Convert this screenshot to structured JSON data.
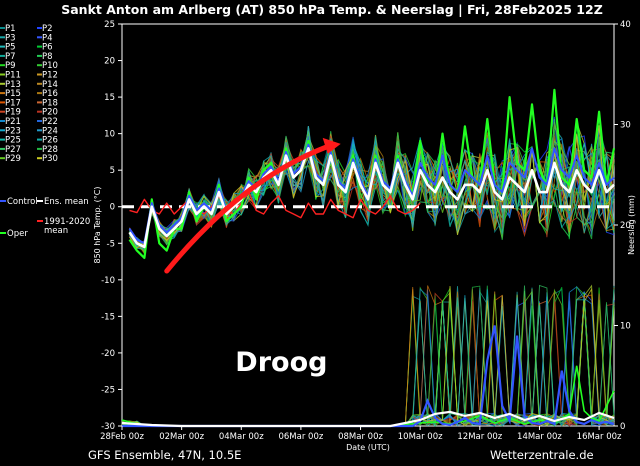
{
  "chart_data": {
    "type": "line",
    "title": "Sankt Anton am Arlberg  (AT)  850 hPa Temp. & Neerslag | Fri, 28Feb2025 12Z",
    "xlabel": "Date (UTC)",
    "ylabel": "850 hPa Temp. (°C)",
    "y2label": "Neerslag (mm)",
    "ylim": [
      -30,
      25
    ],
    "y2lim": [
      0,
      40
    ],
    "yticks": [
      25,
      20,
      15,
      10,
      5,
      0,
      -5,
      -10,
      -15,
      -20,
      -25,
      -30
    ],
    "y2ticks": [
      40,
      30,
      20,
      10,
      0
    ],
    "xlim": [
      0,
      16.5
    ],
    "x_tick_labels": [
      "28Feb 00z",
      "02Mar 00z",
      "04Mar 00z",
      "06Mar 00z",
      "08Mar 00z",
      "10Mar 00z",
      "12Mar 00z",
      "14Mar 00z",
      "16Mar 00z"
    ],
    "x_tick_days": [
      0,
      2,
      4,
      6,
      8,
      10,
      12,
      14,
      16
    ],
    "grid": false,
    "legend_position": "left",
    "legend": [
      {
        "name": "P1",
        "color": "#0a8c8c"
      },
      {
        "name": "P2",
        "color": "#2244ff"
      },
      {
        "name": "P3",
        "color": "#1aa8a8"
      },
      {
        "name": "P4",
        "color": "#3355ff"
      },
      {
        "name": "P5",
        "color": "#22bbbb"
      },
      {
        "name": "P6",
        "color": "#00cc33"
      },
      {
        "name": "P7",
        "color": "#11aa99"
      },
      {
        "name": "P8",
        "color": "#22cc55"
      },
      {
        "name": "P9",
        "color": "#22dd22"
      },
      {
        "name": "P10",
        "color": "#33cc33"
      },
      {
        "name": "P11",
        "color": "#88cc22"
      },
      {
        "name": "P12",
        "color": "#cc9922"
      },
      {
        "name": "P13",
        "color": "#aacc33"
      },
      {
        "name": "P14",
        "color": "#bb8822"
      },
      {
        "name": "P15",
        "color": "#cc7711"
      },
      {
        "name": "P16",
        "color": "#aa7711"
      },
      {
        "name": "P17",
        "color": "#dd5500"
      },
      {
        "name": "P18",
        "color": "#cc6633"
      },
      {
        "name": "P19",
        "color": "#cc4422"
      },
      {
        "name": "P20",
        "color": "#bb3322"
      },
      {
        "name": "P21",
        "color": "#1188cc"
      },
      {
        "name": "P22",
        "color": "#2266dd"
      },
      {
        "name": "P23",
        "color": "#11aacc"
      },
      {
        "name": "P24",
        "color": "#2299cc"
      },
      {
        "name": "P25",
        "color": "#11bbaa"
      },
      {
        "name": "P26",
        "color": "#11aaaa"
      },
      {
        "name": "P27",
        "color": "#33cc66"
      },
      {
        "name": "P28",
        "color": "#22bb44"
      },
      {
        "name": "P29",
        "color": "#66cc22"
      },
      {
        "name": "P30",
        "color": "#cccc22"
      },
      {
        "name": "Control",
        "color": "#3355ff"
      },
      {
        "name": "Ens. mean",
        "color": "#ffffff"
      },
      {
        "name": "1991-2020 mean",
        "color": "#ff2222"
      },
      {
        "name": "Oper",
        "color": "#22ff22"
      }
    ],
    "series": [
      {
        "name": "Ens. mean",
        "color": "#ffffff",
        "x": [
          0.25,
          0.5,
          0.75,
          1.0,
          1.25,
          1.5,
          1.75,
          2.0,
          2.25,
          2.5,
          2.75,
          3.0,
          3.25,
          3.5,
          3.75,
          4.0,
          4.25,
          4.5,
          4.75,
          5.0,
          5.25,
          5.5,
          5.75,
          6.0,
          6.25,
          6.5,
          6.75,
          7.0,
          7.25,
          7.5,
          7.75,
          8.0,
          8.25,
          8.5,
          8.75,
          9.0,
          9.25,
          9.5,
          9.75,
          10.0,
          10.25,
          10.5,
          10.75,
          11.0,
          11.25,
          11.5,
          11.75,
          12.0,
          12.25,
          12.5,
          12.75,
          13.0,
          13.25,
          13.5,
          13.75,
          14.0,
          14.25,
          14.5,
          14.75,
          15.0,
          15.25,
          15.5,
          15.75,
          16.0,
          16.25,
          16.5
        ],
        "y": [
          -3.5,
          -5,
          -5.5,
          0,
          -3,
          -4,
          -3,
          -2,
          1,
          -1,
          0,
          -1,
          2,
          -1,
          0,
          1,
          3,
          2,
          4,
          5,
          3,
          7,
          4,
          5,
          8,
          4,
          3,
          7,
          3,
          2,
          6,
          3,
          1,
          6,
          3,
          2,
          6,
          3,
          1,
          5,
          3,
          2,
          4,
          2,
          1,
          3,
          3,
          2,
          5,
          2,
          1,
          4,
          3,
          2,
          5,
          2,
          2,
          6,
          3,
          2,
          5,
          3,
          2,
          5,
          2,
          3
        ]
      },
      {
        "name": "Oper",
        "color": "#22ff22",
        "x": [
          0.25,
          0.5,
          0.75,
          1.0,
          1.25,
          1.5,
          1.75,
          2.0,
          2.25,
          2.5,
          2.75,
          3.0,
          3.25,
          3.5,
          3.75,
          4.0,
          4.25,
          4.5,
          4.75,
          5.0,
          5.25,
          5.5,
          5.75,
          6.0,
          6.25,
          6.5,
          6.75,
          7.0,
          7.25,
          7.5,
          7.75,
          8.0,
          8.25,
          8.5,
          8.75,
          9.0,
          9.25,
          9.5,
          9.75,
          10.0,
          10.25,
          10.5,
          10.75,
          11.0,
          11.25,
          11.5,
          11.75,
          12.0,
          12.25,
          12.5,
          12.75,
          13.0,
          13.25,
          13.5,
          13.75,
          14.0,
          14.25,
          14.5,
          14.75,
          15.0,
          15.25,
          15.5,
          15.75,
          16.0,
          16.25,
          16.5
        ],
        "y": [
          -4.5,
          -6,
          -7,
          1,
          -5,
          -6,
          -3,
          -3,
          2,
          -2,
          0,
          -1,
          3,
          -2,
          -1,
          0,
          4,
          1,
          5,
          6,
          3,
          8,
          4,
          5,
          9,
          4,
          3,
          8,
          3,
          2,
          7,
          3,
          1,
          7,
          3,
          2,
          7,
          3,
          2,
          9,
          3,
          2,
          10,
          3,
          2,
          11,
          4,
          3,
          12,
          3,
          2,
          15,
          6,
          5,
          14,
          5,
          3,
          16,
          4,
          3,
          12,
          5,
          4,
          13,
          3,
          8
        ]
      },
      {
        "name": "Control",
        "color": "#3355ff",
        "x": [
          0.25,
          0.5,
          0.75,
          1.0,
          1.25,
          1.5,
          1.75,
          2.0,
          2.25,
          2.5,
          2.75,
          3.0,
          3.25,
          3.5,
          3.75,
          4.0,
          4.25,
          4.5,
          4.75,
          5.0,
          5.25,
          5.5,
          5.75,
          6.0,
          6.25,
          6.5,
          6.75,
          7.0,
          7.25,
          7.5,
          7.75,
          8.0,
          8.25,
          8.5,
          8.75,
          9.0,
          9.25,
          9.5,
          9.75,
          10.0,
          10.25,
          10.5,
          10.75,
          11.0,
          11.25,
          11.5,
          11.75,
          12.0,
          12.25,
          12.5,
          12.75,
          13.0,
          13.25,
          13.5,
          13.75,
          14.0,
          14.25,
          14.5,
          14.75,
          15.0,
          15.25,
          15.5,
          15.75,
          16.0,
          16.25,
          16.5
        ],
        "y": [
          -3,
          -4.5,
          -5,
          0.5,
          -2.5,
          -3.5,
          -2.5,
          -1.5,
          1.5,
          -0.5,
          0.5,
          -0.5,
          2.5,
          -0.5,
          0.5,
          1.5,
          3.5,
          2.5,
          4.5,
          5.5,
          3.5,
          7.5,
          4.5,
          5.5,
          8.5,
          4.5,
          3.5,
          7.5,
          3.5,
          2.5,
          6.5,
          3.5,
          1.5,
          6.5,
          3.5,
          2.5,
          6.5,
          3.5,
          1.5,
          6,
          4,
          3,
          7,
          3,
          2,
          5,
          4,
          3,
          7,
          3,
          2,
          6,
          5,
          4,
          8,
          4,
          3,
          8,
          5,
          4,
          7,
          4,
          3,
          6,
          3,
          4
        ]
      },
      {
        "name": "1991-2020 mean",
        "color": "#ff2222",
        "x": [
          0.25,
          0.5,
          0.75,
          1.0,
          1.25,
          1.5,
          1.75,
          2.0,
          2.25,
          2.5,
          2.75,
          3.0,
          3.25,
          3.5,
          3.75,
          4.0,
          4.25,
          4.5,
          4.75,
          5.0,
          5.25,
          5.5,
          5.75,
          6.0,
          6.25,
          6.5,
          6.75,
          7.0,
          7.25,
          7.5,
          7.75,
          8.0,
          8.25,
          8.5,
          8.75,
          9.0,
          9.25,
          9.5,
          9.75,
          10.0
        ],
        "y": [
          -0.5,
          -0.8,
          1,
          -0.5,
          -1,
          0.5,
          -1,
          0,
          1,
          -0.5,
          -1,
          0,
          1.5,
          -0.5,
          -1,
          0.5,
          2,
          -0.5,
          -1,
          0.5,
          1.5,
          -0.5,
          -1,
          -1.5,
          0.5,
          -1,
          -1,
          1,
          -0.5,
          -1,
          -1.5,
          1,
          -0.5,
          -1,
          0,
          1.5,
          -0.5,
          -1,
          -0.5,
          0.5
        ]
      }
    ],
    "precipitation": {
      "unit": "mm",
      "axis": "right",
      "ens_mean": {
        "name": "Ens. mean",
        "color": "#ffffff",
        "x": [
          0,
          1,
          2,
          3,
          4,
          5,
          6,
          7,
          8,
          9,
          10,
          10.5,
          11,
          11.5,
          12,
          12.5,
          13,
          13.5,
          14,
          14.5,
          15,
          15.5,
          16,
          16.5
        ],
        "y": [
          0.3,
          0.1,
          0,
          0,
          0,
          0,
          0,
          0,
          0,
          0,
          0.6,
          1.2,
          1.4,
          1.0,
          1.3,
          0.8,
          1.2,
          0.6,
          1.0,
          0.5,
          0.9,
          0.6,
          1.3,
          0.8
        ]
      },
      "control": {
        "name": "Control",
        "color": "#3355ff",
        "x": [
          0,
          9.75,
          10,
          10.25,
          10.5,
          10.75,
          11,
          11.25,
          11.5,
          11.75,
          12,
          12.25,
          12.5,
          12.75,
          13,
          13.25,
          13.5,
          13.75,
          14,
          14.25,
          14.5,
          14.75,
          15,
          15.25,
          15.5,
          15.75,
          16,
          16.25,
          16.5
        ],
        "y": [
          0,
          0,
          0.5,
          2.5,
          0.8,
          0.2,
          0.1,
          0.4,
          0.8,
          0.3,
          0.2,
          6.5,
          10,
          2,
          0.5,
          9,
          1,
          0.3,
          0.2,
          0.5,
          0.2,
          5.5,
          1.5,
          0.4,
          0.2,
          0.6,
          0.3,
          0.4,
          0.2
        ]
      },
      "oper": {
        "name": "Oper",
        "color": "#22ff22",
        "x": [
          0,
          0.5,
          1,
          1.5,
          2,
          9,
          10,
          10.5,
          11,
          11.5,
          12,
          12.5,
          13,
          13.5,
          14,
          14.5,
          15,
          15.25,
          15.5,
          15.75,
          16,
          16.5
        ],
        "y": [
          0.6,
          0.2,
          0,
          0,
          0,
          0,
          0.3,
          0.4,
          0.2,
          0.5,
          1.0,
          0.3,
          0.8,
          0.2,
          0.6,
          0.3,
          1.2,
          6,
          1.5,
          0.8,
          0.5,
          3.5
        ]
      }
    },
    "annotations": [
      {
        "text": "Droog",
        "x": 3.8,
        "y": -22.5,
        "color": "#ffffff"
      },
      {
        "type": "arrow",
        "color": "#ff1a1a",
        "from": [
          1.5,
          -8.8
        ],
        "to": [
          7.2,
          8.6
        ]
      },
      {
        "type": "dashed-line",
        "color": "#ffffff",
        "y": 0
      }
    ]
  },
  "footer": {
    "left": "GFS Ensemble, 47N, 10.5E",
    "right": "Wetterzentrale.de"
  }
}
